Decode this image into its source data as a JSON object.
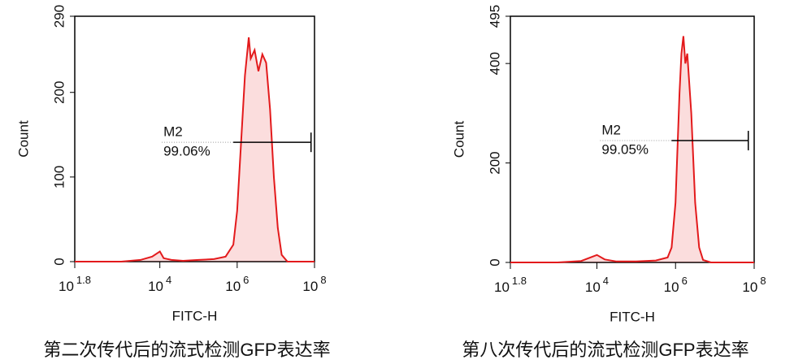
{
  "chart_data": [
    {
      "type": "area",
      "caption": "第二次传代后的流式检测GFP表达率",
      "xlabel": "FITC-H",
      "ylabel": "Count",
      "color": "#e31a1c",
      "xscale": "log",
      "x": [
        63,
        1000,
        3162,
        6310,
        10000,
        12589,
        19953,
        39811,
        100000,
        251189,
        501187,
        794328,
        1000000,
        1258925,
        1584893,
        1995262,
        2238721,
        2818383,
        3548134,
        4466836,
        5623413,
        7079458,
        8912509,
        11220185,
        14125375,
        19952623,
        100000000
      ],
      "values": [
        0,
        0,
        2,
        6,
        12,
        4,
        2,
        1,
        2,
        3,
        6,
        20,
        60,
        140,
        220,
        265,
        240,
        250,
        225,
        245,
        235,
        180,
        100,
        40,
        8,
        0,
        0
      ],
      "xlim": [
        63.0957,
        100000000
      ],
      "ylim": [
        0,
        290
      ],
      "xticks": [
        {
          "value": 63.0957,
          "label": "10^1.8"
        },
        {
          "value": 10000,
          "label": "10^4"
        },
        {
          "value": 1000000,
          "label": "10^6"
        },
        {
          "value": 100000000,
          "label": "10^8"
        }
      ],
      "yticks": [
        0,
        100,
        200,
        290
      ],
      "gate": {
        "label": "M2",
        "percent": "99.06%",
        "xrange": [
          794328,
          81283051
        ],
        "y": 141
      }
    },
    {
      "type": "area",
      "caption": "第八次传代后的流式检测GFP表达率",
      "xlabel": "FITC-H",
      "ylabel": "Count",
      "color": "#e31a1c",
      "xscale": "log",
      "x": [
        63,
        1000,
        3981,
        7943,
        10000,
        15849,
        31623,
        100000,
        316228,
        630957,
        794328,
        1000000,
        1258925,
        1412538,
        1584893,
        1778279,
        1995262,
        2511886,
        3162278,
        3981072,
        5011872,
        7943282,
        100000000
      ],
      "values": [
        0,
        0,
        3,
        12,
        15,
        6,
        2,
        2,
        4,
        10,
        30,
        120,
        340,
        420,
        455,
        400,
        420,
        300,
        120,
        30,
        5,
        0,
        0
      ],
      "xlim": [
        63.0957,
        100000000
      ],
      "ylim": [
        0,
        495
      ],
      "xticks": [
        {
          "value": 63.0957,
          "label": "10^1.8"
        },
        {
          "value": 10000,
          "label": "10^4"
        },
        {
          "value": 1000000,
          "label": "10^6"
        },
        {
          "value": 100000000,
          "label": "10^8"
        }
      ],
      "yticks": [
        0,
        200,
        400,
        495
      ],
      "gate": {
        "label": "M2",
        "percent": "99.05%",
        "xrange": [
          794328,
          70794578
        ],
        "y": 245
      }
    }
  ]
}
